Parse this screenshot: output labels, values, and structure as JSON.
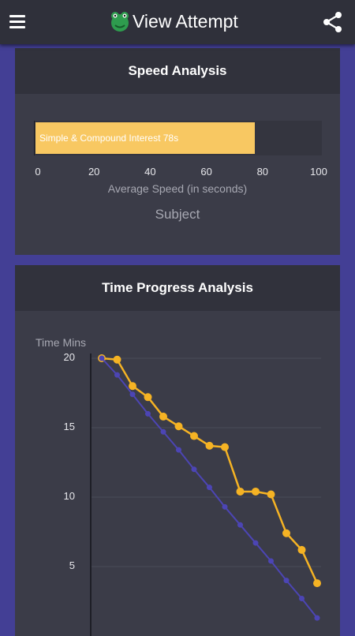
{
  "appbar": {
    "title": "View Attempt",
    "menu_icon": "hamburger-menu-icon",
    "logo_icon": "frog-logo-icon",
    "share_icon": "share-icon"
  },
  "speed_card": {
    "title": "Speed Analysis",
    "chart_data": {
      "type": "bar",
      "orientation": "horizontal",
      "categories": [
        "Simple & Compound Interest"
      ],
      "values": [
        78
      ],
      "bar_label": "Simple & Compound Interest 78s",
      "xlabel": "Average Speed (in seconds)",
      "ylabel": "Subject",
      "xlim": [
        0,
        100
      ],
      "xticks": [
        "0",
        "20",
        "40",
        "60",
        "80",
        "100"
      ],
      "bar_color": "#f8c862"
    }
  },
  "time_card": {
    "title": "Time Progress Analysis",
    "chart_data": {
      "type": "line",
      "ylabel": "Time Mins",
      "yticks": [
        "20",
        "15",
        "10",
        "5"
      ],
      "ylim_visible": [
        1,
        20
      ],
      "x": [
        0,
        1,
        2,
        3,
        4,
        5,
        6,
        7,
        8,
        9,
        10,
        11,
        12,
        13,
        14
      ],
      "series": [
        {
          "color": "#f5b324",
          "values": [
            20,
            19.9,
            18.0,
            17.2,
            15.8,
            15.1,
            14.4,
            13.7,
            13.6,
            10.4,
            10.4,
            10.2,
            7.4,
            6.2,
            3.8
          ]
        },
        {
          "color": "#4c45b4",
          "values": [
            20,
            18.8,
            17.4,
            16.0,
            14.7,
            13.4,
            12.0,
            10.7,
            9.3,
            8.0,
            6.7,
            5.4,
            4.0,
            2.7,
            1.3
          ]
        }
      ]
    }
  }
}
